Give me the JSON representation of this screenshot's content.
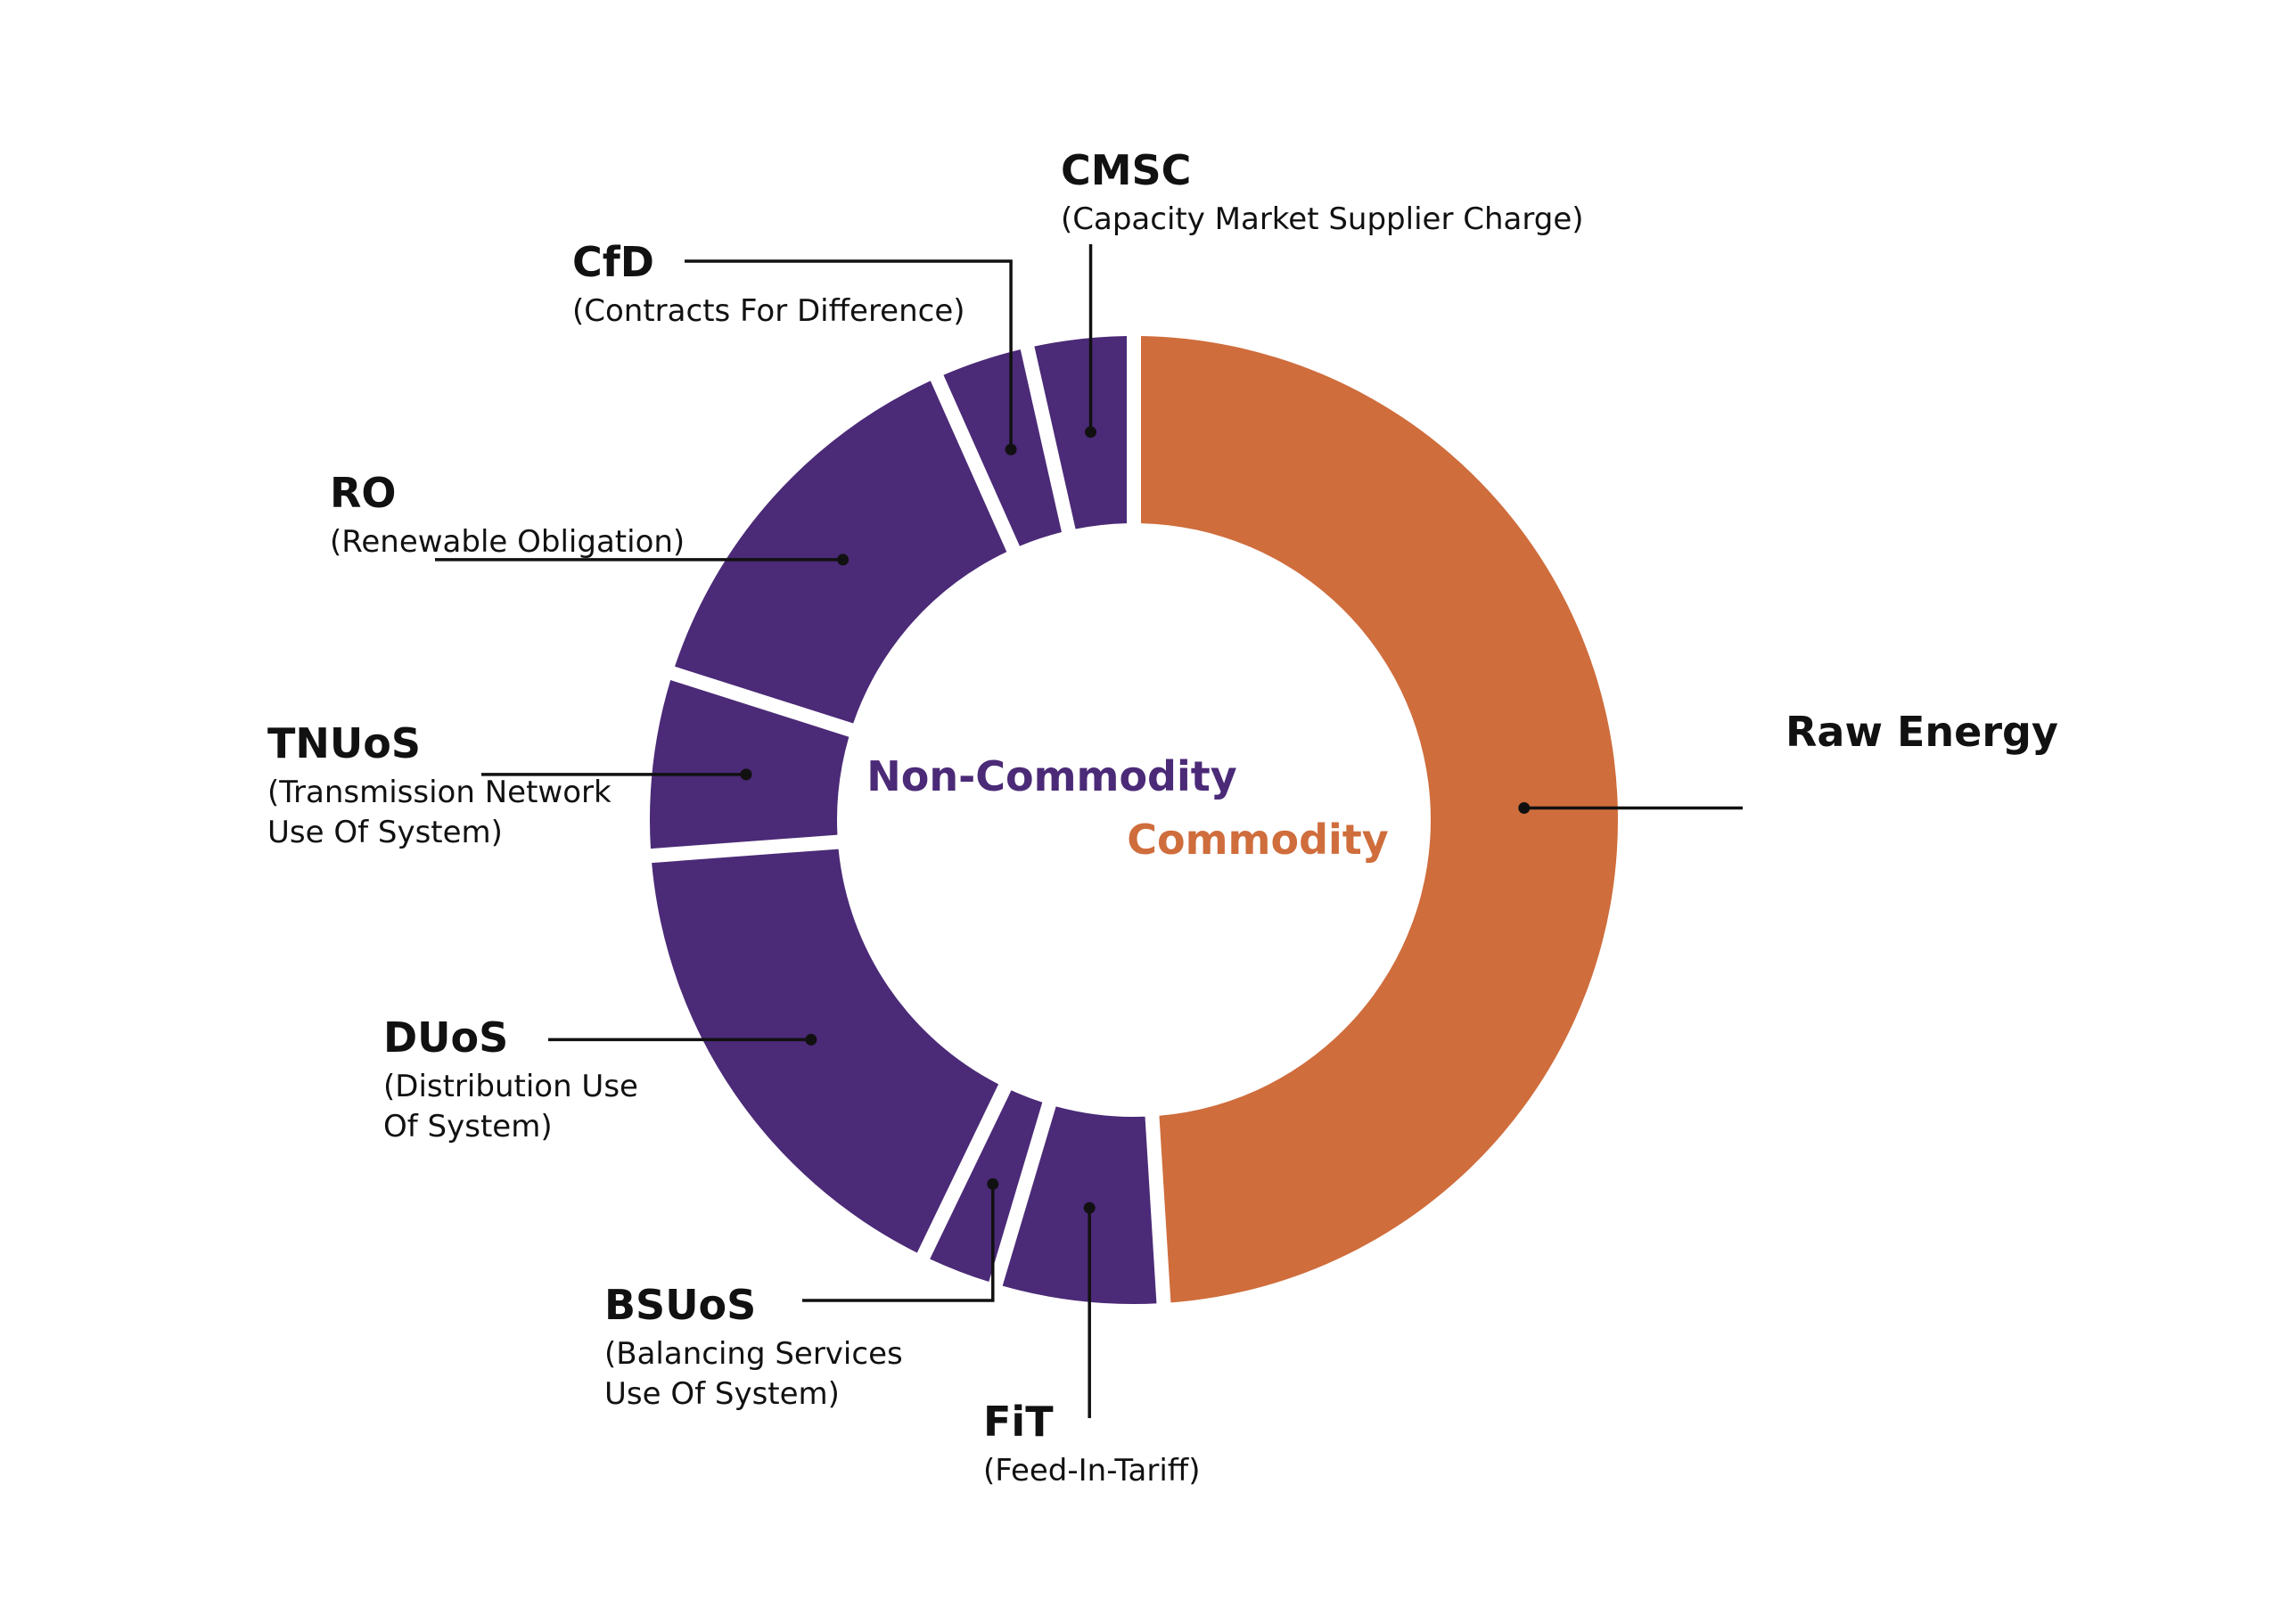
{
  "chart_data": {
    "type": "pie",
    "style": "donut",
    "segments": [
      {
        "group": "commodity",
        "label": "Raw Energy",
        "sub": [],
        "value": 50.0
      },
      {
        "group": "non-commodity",
        "label": "FiT",
        "sub": [
          "(Feed-In-Tariff)"
        ],
        "value": 5.7
      },
      {
        "group": "non-commodity",
        "label": "BSUoS",
        "sub": [
          "(Balancing Services",
          "Use Of System)"
        ],
        "value": 2.6
      },
      {
        "group": "non-commodity",
        "label": "DUoS",
        "sub": [
          "(Distribution Use",
          "Of System)"
        ],
        "value": 17.0
      },
      {
        "group": "non-commodity",
        "label": "TNUoS",
        "sub": [
          "(Transmission Network",
          "Use Of System)"
        ],
        "value": 6.2
      },
      {
        "group": "non-commodity",
        "label": "RO",
        "sub": [
          "(Renewable Obligation)"
        ],
        "value": 13.7
      },
      {
        "group": "non-commodity",
        "label": "CfD",
        "sub": [
          "(Contracts For Difference)"
        ],
        "value": 3.2
      },
      {
        "group": "non-commodity",
        "label": "CMSC",
        "sub": [
          "(Capacity Market Supplier Charge)"
        ],
        "value": 3.6
      }
    ],
    "center_labels": [
      {
        "text": "Non-Commodity",
        "group": "non-commodity"
      },
      {
        "text": "Commodity",
        "group": "commodity"
      }
    ],
    "colors": {
      "non-commodity": "#4b2a77",
      "commodity": "#cf6d3c",
      "leader": "#111111"
    }
  }
}
